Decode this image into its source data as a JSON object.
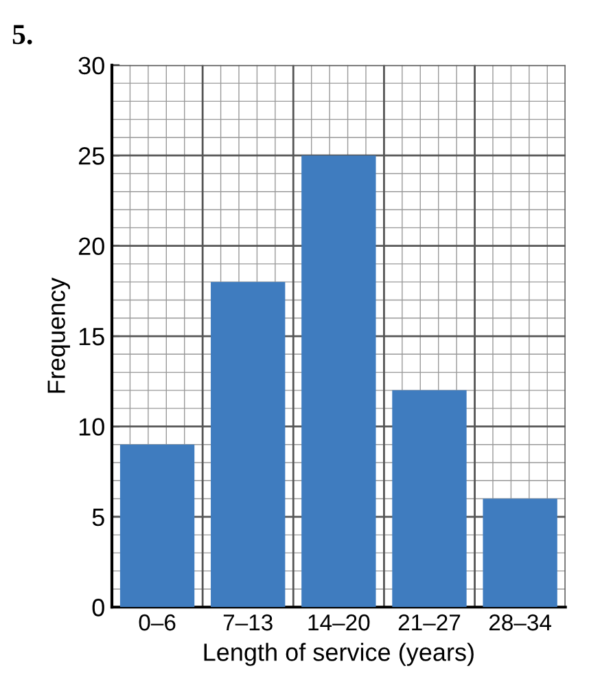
{
  "chart_data": {
    "type": "bar",
    "title": "5.",
    "xlabel": "Length of service (years)",
    "ylabel": "Frequency",
    "categories": [
      "0–6",
      "7–13",
      "14–20",
      "21–27",
      "28–34"
    ],
    "values": [
      9,
      18,
      25,
      12,
      6
    ],
    "color": "#3f7cbf",
    "ylim": [
      0,
      30
    ],
    "yticks": [
      0,
      5,
      10,
      15,
      20,
      25,
      30
    ],
    "grid": true
  }
}
